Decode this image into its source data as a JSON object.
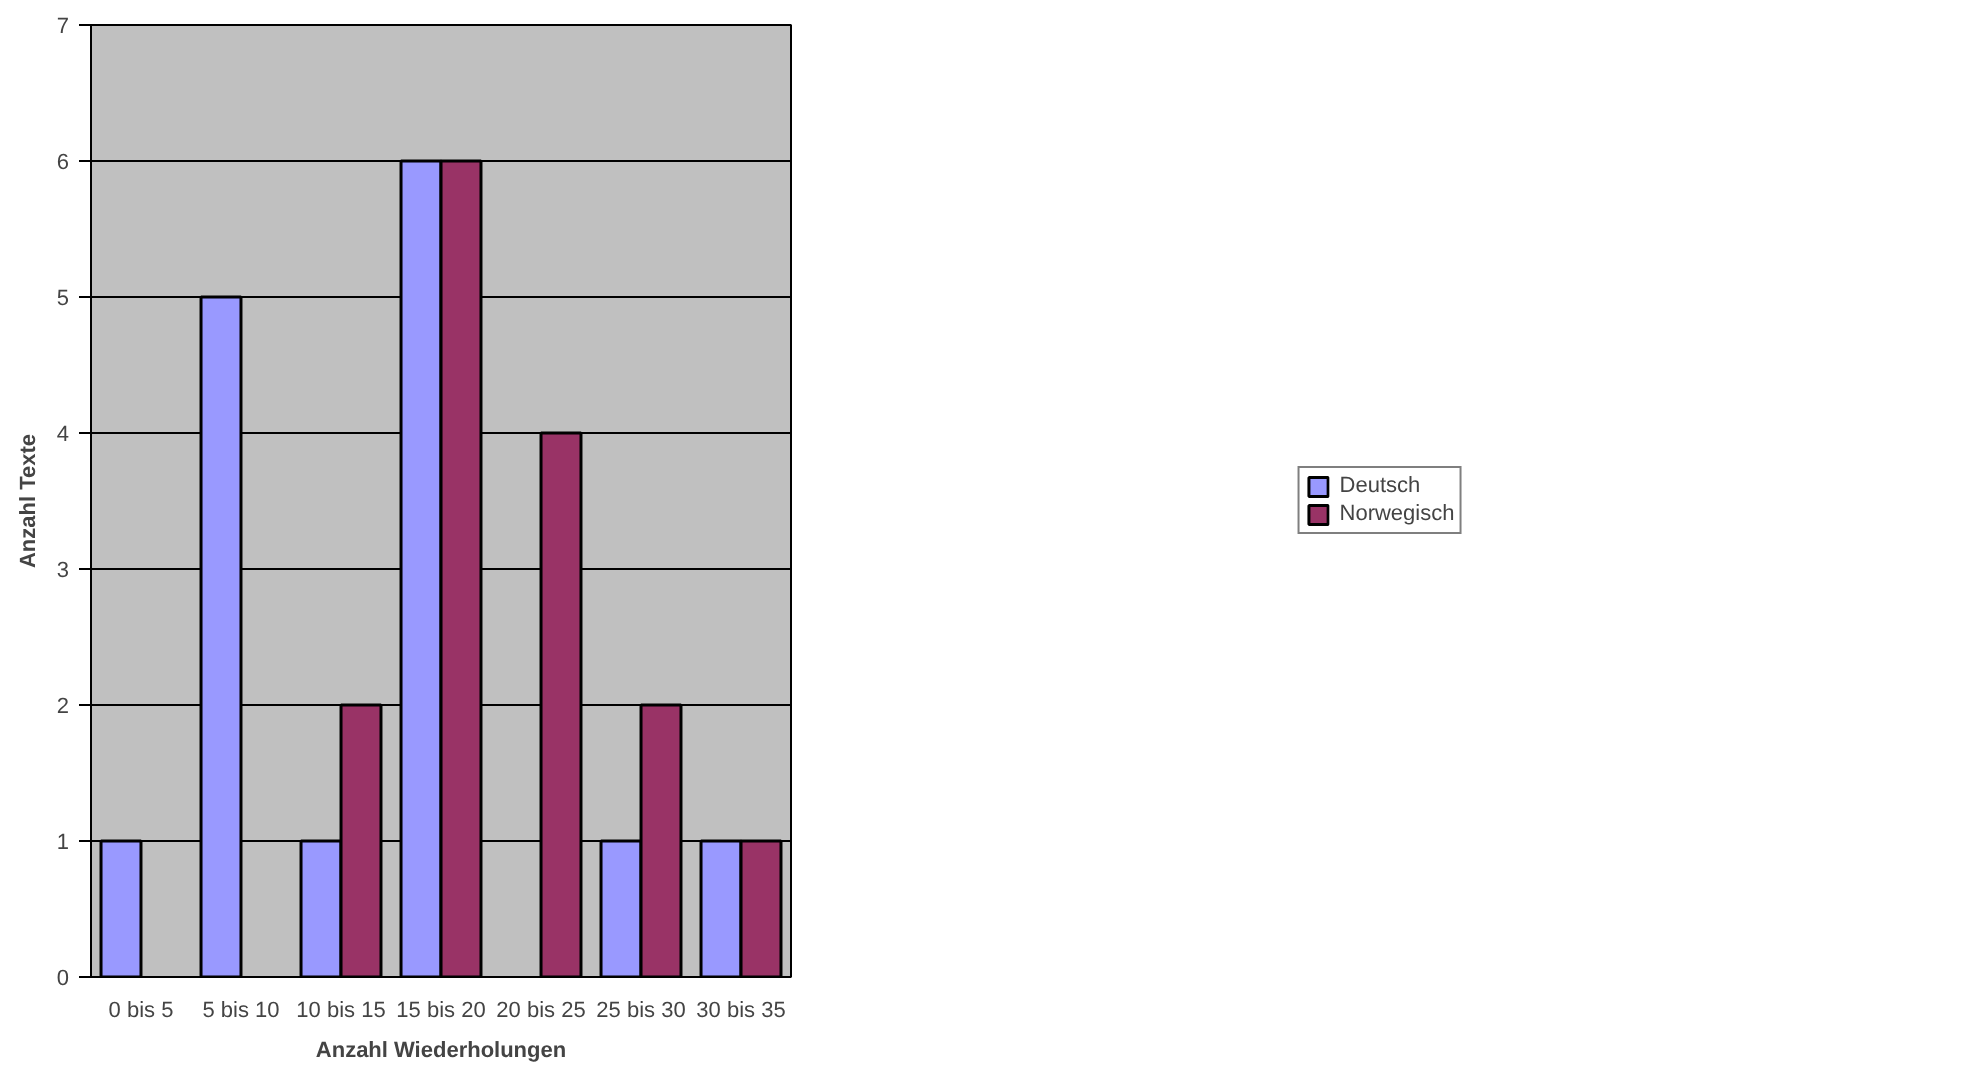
{
  "chart_data": {
    "type": "bar",
    "xlabel": "Anzahl Wiederholungen",
    "ylabel": "Anzahl Texte",
    "categories": [
      "0 bis 5",
      "5 bis 10",
      "10 bis 15",
      "15 bis 20",
      "20 bis 25",
      "25 bis 30",
      "30 bis 35"
    ],
    "series": [
      {
        "name": "Deutsch",
        "color": "#9999ff",
        "values": [
          1,
          5,
          1,
          6,
          null,
          1,
          1
        ]
      },
      {
        "name": "Norwegisch",
        "color": "#993366",
        "values": [
          null,
          null,
          2,
          6,
          4,
          2,
          1
        ]
      }
    ],
    "ylim": [
      0,
      7
    ],
    "yticks": [
      0,
      1,
      2,
      3,
      4,
      5,
      6,
      7
    ],
    "grid": "y",
    "legend": "right"
  }
}
